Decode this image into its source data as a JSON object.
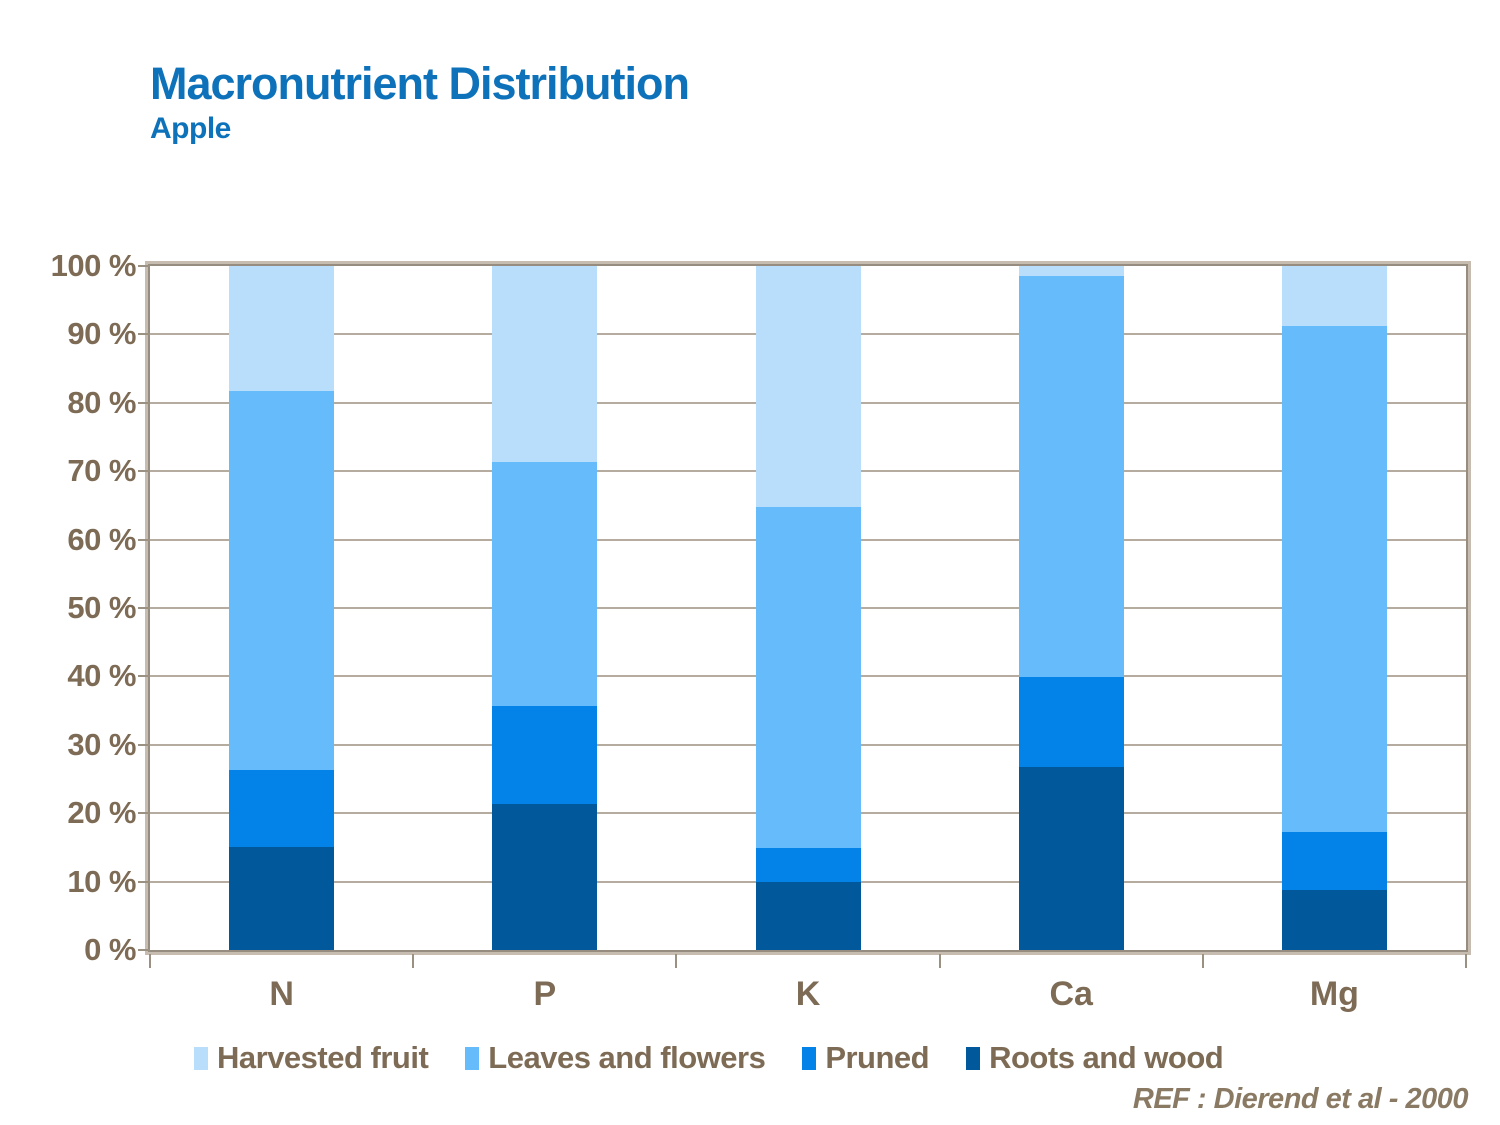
{
  "header": {
    "title": "Macronutrient Distribution",
    "subtitle": "Apple"
  },
  "reference": "REF :  Dierend et al - 2000",
  "colors": {
    "title_text": "#0d72ba",
    "axis_text": "#7d6b55",
    "reference_text": "#8a7a64",
    "gridline": "#b5ab9e",
    "plot_border": "#968c7f",
    "harvested_fruit": "#b8defc",
    "leaves_and_flowers": "#66bcfb",
    "pruned": "#0383e8",
    "roots_and_wood": "#01589a"
  },
  "chart_data": {
    "type": "bar",
    "stacked": true,
    "title": "Macronutrient Distribution",
    "subtitle": "Apple",
    "xlabel": "",
    "ylabel": "",
    "ylim": [
      0,
      100
    ],
    "grid": true,
    "legend_position": "bottom",
    "categories": [
      "N",
      "P",
      "K",
      "Ca",
      "Mg"
    ],
    "series": [
      {
        "name": "Roots and wood",
        "color": "#01589a",
        "values": [
          15.0,
          21.4,
          9.9,
          26.8,
          8.8
        ]
      },
      {
        "name": "Pruned",
        "color": "#0383e8",
        "values": [
          11.3,
          14.3,
          5.0,
          13.1,
          8.5
        ]
      },
      {
        "name": "Leaves and flowers",
        "color": "#66bcfb",
        "values": [
          55.4,
          35.7,
          49.8,
          58.6,
          73.9
        ]
      },
      {
        "name": "Harvested fruit",
        "color": "#b8defc",
        "values": [
          18.3,
          28.6,
          35.3,
          1.5,
          8.8
        ]
      }
    ],
    "legend_order": [
      "Harvested fruit",
      "Leaves and flowers",
      "Pruned",
      "Roots and wood"
    ],
    "y_ticks": [
      "0 %",
      "10 %",
      "20 %",
      "30 %",
      "40 %",
      "50 %",
      "60 %",
      "70 %",
      "80 %",
      "90 %",
      "100 %"
    ]
  }
}
